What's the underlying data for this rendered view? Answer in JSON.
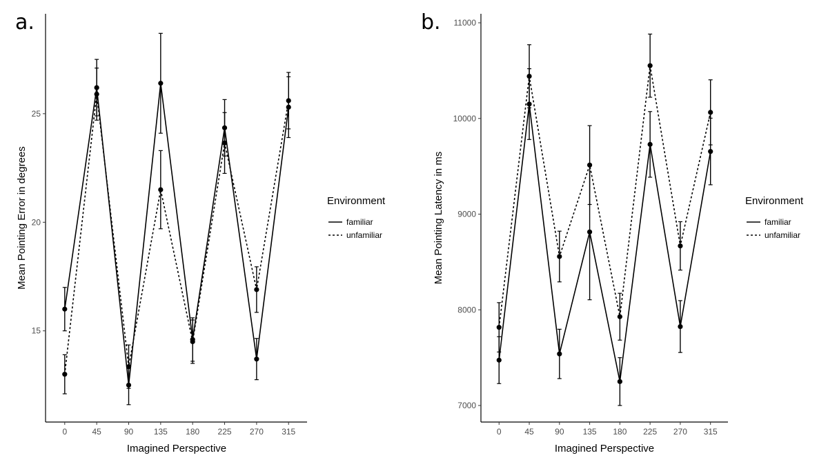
{
  "chart_data": [
    {
      "type": "line",
      "panel_label": "a.",
      "xlabel": "Imagined Perspective",
      "ylabel": "Mean Pointing Error in degrees",
      "x": [
        0,
        45,
        90,
        135,
        180,
        225,
        270,
        315
      ],
      "x_tick_labels": [
        "0",
        "45",
        "90",
        "135",
        "180",
        "225",
        "270",
        "315"
      ],
      "y_ticks": [
        15,
        20,
        25
      ],
      "xlim": [
        -27,
        341
      ],
      "ylim": [
        10.8,
        29.6
      ],
      "grid": false,
      "legend": {
        "title": "Environment",
        "placement": "right"
      },
      "series": [
        {
          "name": "familiar",
          "linestyle": "solid",
          "values": [
            16.0,
            26.2,
            12.5,
            26.4,
            14.6,
            24.35,
            13.7,
            25.3
          ],
          "error": [
            1.0,
            1.3,
            0.9,
            2.3,
            1.0,
            1.3,
            0.95,
            1.4
          ]
        },
        {
          "name": "unfamiliar",
          "linestyle": "dashed",
          "values": [
            13.0,
            25.9,
            13.35,
            21.5,
            14.5,
            23.65,
            16.9,
            25.6
          ],
          "error": [
            0.9,
            1.2,
            1.0,
            1.8,
            1.0,
            1.4,
            1.05,
            1.3
          ]
        }
      ]
    },
    {
      "type": "line",
      "panel_label": "b.",
      "xlabel": "Imagined Perspective",
      "ylabel": "Mean Pointing Latency in ms",
      "x": [
        0,
        45,
        90,
        135,
        180,
        225,
        270,
        315
      ],
      "x_tick_labels": [
        "0",
        "45",
        "90",
        "135",
        "180",
        "225",
        "270",
        "315"
      ],
      "y_ticks": [
        7000,
        8000,
        9000,
        10000,
        11000
      ],
      "xlim": [
        -27,
        341
      ],
      "ylim": [
        6827,
        11094
      ],
      "grid": false,
      "legend": {
        "title": "Environment",
        "placement": "right"
      },
      "series": [
        {
          "name": "familiar",
          "linestyle": "solid",
          "values": [
            7474,
            10150,
            7539,
            8814,
            7250,
            9729,
            7825,
            9655
          ],
          "error": [
            245,
            370,
            258,
            709,
            250,
            343,
            271,
            348
          ]
        },
        {
          "name": "unfamiliar",
          "linestyle": "dashed",
          "values": [
            7817,
            10441,
            8557,
            9513,
            7928,
            10552,
            8668,
            10064
          ],
          "error": [
            258,
            330,
            265,
            412,
            245,
            330,
            253,
            340
          ]
        }
      ]
    }
  ]
}
